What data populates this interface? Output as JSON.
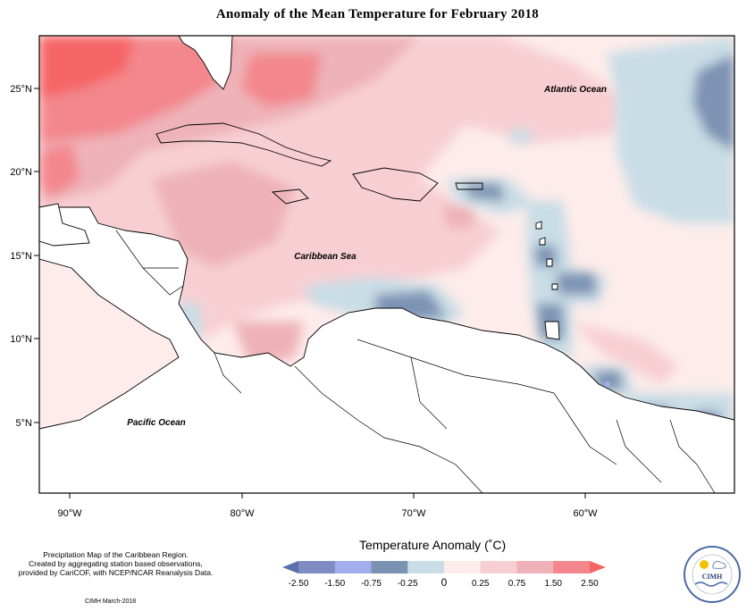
{
  "title": "Anomaly of the Mean Temperature for February 2018",
  "map": {
    "ocean_labels": {
      "atlantic": "Atlantic Ocean",
      "caribbean": "Caribbean Sea",
      "pacific": "Pacific Ocean"
    },
    "lat_ticks": [
      "25°N",
      "20°N",
      "15°N",
      "10°N",
      "5°N"
    ],
    "lon_ticks": [
      "90°W",
      "80°W",
      "70°W",
      "60°W"
    ],
    "extent": {
      "lon": [
        -92,
        -52
      ],
      "lat": [
        1,
        28
      ]
    }
  },
  "legend": {
    "title": "Temperature Anomaly (˚C)",
    "labels": [
      "-2.50",
      "-1.50",
      "-0.75",
      "-0.25",
      "0",
      "0.25",
      "0.75",
      "1.50",
      "2.50"
    ],
    "colors": [
      "#5b6fa8",
      "#7f8cc4",
      "#a3acec",
      "#7b93b3",
      "#c9dde6",
      "#fdeceb",
      "#f7cfd3",
      "#eeb2b8",
      "#f3878d",
      "#f56565"
    ]
  },
  "credit": {
    "lines": [
      "Precipitation Map of the Caribbean Region.",
      "Created by aggregating station based observations,",
      "provided by CariCOF, with NCEP/NCAR Reanalysis Data."
    ],
    "footer": "CIMH March-2018"
  },
  "logo": {
    "text": "CIMH"
  }
}
